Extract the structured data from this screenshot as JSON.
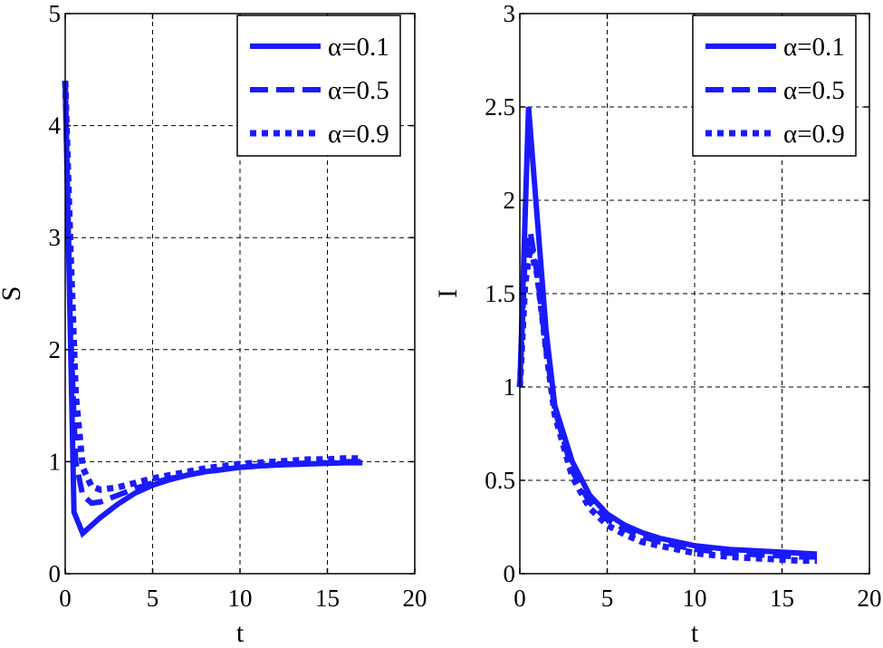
{
  "chart_data": [
    {
      "type": "line",
      "xlabel": "t",
      "ylabel": "S",
      "xlim": [
        0,
        20
      ],
      "ylim": [
        0,
        5
      ],
      "xticks": [
        "0",
        "5",
        "10",
        "15",
        "20"
      ],
      "yticks": [
        "0",
        "1",
        "2",
        "3",
        "4",
        "5"
      ],
      "grid": true,
      "legend_position": "top-right",
      "color": "#1a1aff",
      "series": [
        {
          "name": "α=0.1",
          "style": "solid",
          "x": [
            0,
            0.5,
            1,
            2,
            3,
            4,
            5,
            6,
            7,
            8,
            9,
            10,
            11,
            12,
            13,
            14,
            15,
            16,
            17
          ],
          "y": [
            4.4,
            0.55,
            0.36,
            0.5,
            0.62,
            0.72,
            0.79,
            0.84,
            0.88,
            0.91,
            0.93,
            0.95,
            0.96,
            0.97,
            0.975,
            0.98,
            0.985,
            0.99,
            0.99
          ]
        },
        {
          "name": "α=0.5",
          "style": "dashed",
          "x": [
            0,
            0.3,
            0.6,
            1,
            1.5,
            2,
            3,
            4,
            5,
            6,
            7,
            8,
            9,
            10,
            11,
            12,
            13,
            14,
            15,
            16,
            17
          ],
          "y": [
            4.4,
            2.2,
            1.0,
            0.7,
            0.63,
            0.64,
            0.7,
            0.76,
            0.81,
            0.85,
            0.88,
            0.91,
            0.93,
            0.95,
            0.96,
            0.97,
            0.98,
            0.99,
            0.99,
            1.0,
            1.0
          ]
        },
        {
          "name": "α=0.9",
          "style": "dotted",
          "x": [
            0,
            0.3,
            0.6,
            1,
            1.5,
            2,
            3,
            4,
            5,
            6,
            7,
            8,
            9,
            10,
            11,
            12,
            13,
            14,
            15,
            16,
            17
          ],
          "y": [
            4.4,
            2.9,
            1.6,
            0.95,
            0.78,
            0.75,
            0.77,
            0.81,
            0.85,
            0.88,
            0.91,
            0.94,
            0.96,
            0.98,
            0.99,
            1.0,
            1.01,
            1.02,
            1.02,
            1.03,
            1.03
          ]
        }
      ]
    },
    {
      "type": "line",
      "xlabel": "t",
      "ylabel": "I",
      "xlim": [
        0,
        20
      ],
      "ylim": [
        0,
        3
      ],
      "xticks": [
        "0",
        "5",
        "10",
        "15",
        "20"
      ],
      "yticks": [
        "0",
        "0.5",
        "1",
        "1.5",
        "2",
        "2.5",
        "3"
      ],
      "grid": true,
      "legend_position": "top-right",
      "color": "#1a1aff",
      "series": [
        {
          "name": "α=0.1",
          "style": "solid",
          "x": [
            0,
            0.5,
            1,
            1.5,
            2,
            3,
            4,
            5,
            6,
            7,
            8,
            9,
            10,
            11,
            12,
            13,
            14,
            15,
            16,
            17
          ],
          "y": [
            1.0,
            2.5,
            1.9,
            1.3,
            0.9,
            0.6,
            0.42,
            0.32,
            0.26,
            0.22,
            0.19,
            0.17,
            0.15,
            0.14,
            0.13,
            0.125,
            0.12,
            0.115,
            0.11,
            0.105
          ]
        },
        {
          "name": "α=0.5",
          "style": "dashed",
          "x": [
            0,
            0.3,
            0.6,
            1,
            1.5,
            2,
            3,
            4,
            5,
            6,
            7,
            8,
            9,
            10,
            11,
            12,
            13,
            14,
            15,
            16,
            17
          ],
          "y": [
            1.0,
            1.7,
            1.83,
            1.6,
            1.2,
            0.88,
            0.55,
            0.38,
            0.29,
            0.24,
            0.2,
            0.17,
            0.15,
            0.13,
            0.12,
            0.11,
            0.105,
            0.1,
            0.095,
            0.09,
            0.09
          ]
        },
        {
          "name": "α=0.9",
          "style": "dotted",
          "x": [
            0,
            0.3,
            0.6,
            1,
            1.5,
            2,
            3,
            4,
            5,
            6,
            7,
            8,
            9,
            10,
            11,
            12,
            13,
            14,
            15,
            16,
            17
          ],
          "y": [
            1.0,
            1.55,
            1.75,
            1.6,
            1.2,
            0.85,
            0.52,
            0.35,
            0.26,
            0.21,
            0.17,
            0.15,
            0.13,
            0.11,
            0.1,
            0.09,
            0.085,
            0.08,
            0.075,
            0.07,
            0.07
          ]
        }
      ]
    }
  ]
}
